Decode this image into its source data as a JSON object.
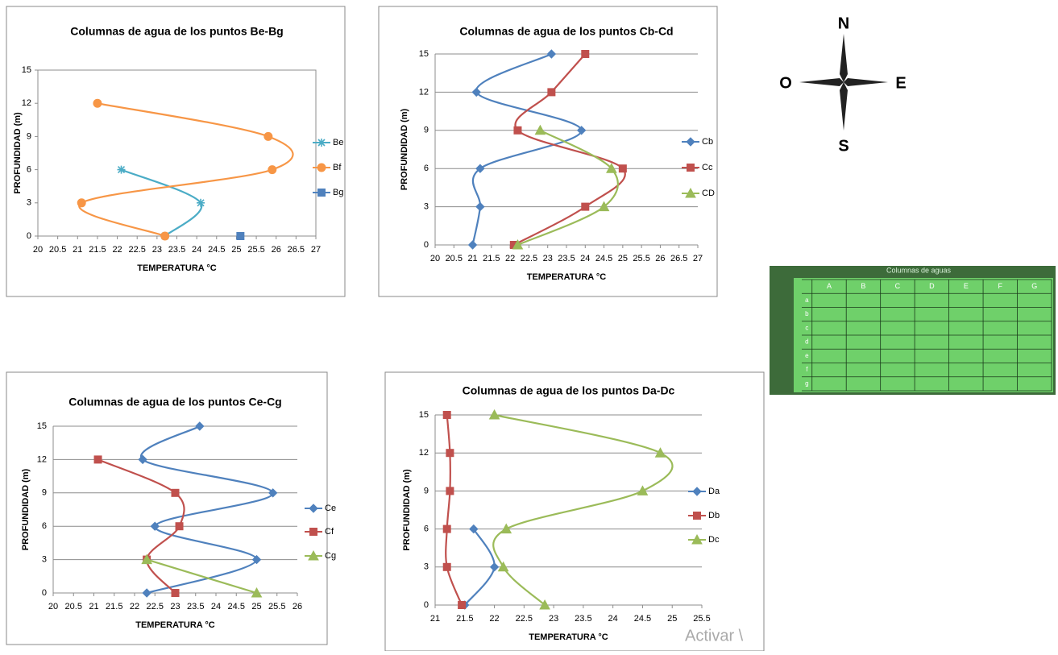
{
  "chart_data": [
    {
      "type": "line",
      "title": "Columnas de agua de los puntos Be-Bg",
      "xlabel": "TEMPERATURA  °C",
      "ylabel": "PROFUNDIDAD (m)",
      "xlim": [
        20,
        27
      ],
      "xticks": [
        20,
        20.5,
        21,
        21.5,
        22,
        22.5,
        23,
        23.5,
        24,
        24.5,
        25,
        25.5,
        26,
        26.5,
        27
      ],
      "ylim": [
        0,
        15
      ],
      "yticks": [
        0,
        3,
        6,
        9,
        12,
        15
      ],
      "grid": false,
      "series": [
        {
          "name": "Be",
          "color": "#4bacc6",
          "marker": "star",
          "x": [
            22.1,
            24.1,
            23.2
          ],
          "values": [
            6,
            3,
            0
          ]
        },
        {
          "name": "Bf",
          "color": "#f79646",
          "marker": "circle",
          "x": [
            21.5,
            25.8,
            25.9,
            21.1,
            23.2
          ],
          "values": [
            12,
            9,
            6,
            3,
            0
          ]
        },
        {
          "name": "Bg",
          "color": "#4f81bd",
          "marker": "square",
          "x": [
            25.1
          ],
          "values": [
            0
          ]
        }
      ]
    },
    {
      "type": "line",
      "title": "Columnas de agua de los puntos Cb-Cd",
      "xlabel": "TEMPERATURA °C",
      "ylabel": "PROFUNDIDAD (m)",
      "xlim": [
        20,
        27
      ],
      "xticks": [
        20,
        20.5,
        21,
        21.5,
        22,
        22.5,
        23,
        23.5,
        24,
        24.5,
        25,
        25.5,
        26,
        26.5,
        27
      ],
      "ylim": [
        0,
        15
      ],
      "yticks": [
        0,
        3,
        6,
        9,
        12,
        15
      ],
      "grid": true,
      "series": [
        {
          "name": "Cb",
          "color": "#4f81bd",
          "marker": "diamond",
          "x": [
            23.1,
            21.1,
            23.9,
            21.2,
            21.2,
            21.0
          ],
          "values": [
            15,
            12,
            9,
            6,
            3,
            0
          ]
        },
        {
          "name": "Cc",
          "color": "#c0504d",
          "marker": "square",
          "x": [
            24.0,
            23.1,
            22.2,
            25.0,
            24.0,
            22.1
          ],
          "values": [
            15,
            12,
            9,
            6,
            3,
            0
          ]
        },
        {
          "name": "CD",
          "color": "#9bbb59",
          "marker": "triangle",
          "x": [
            22.8,
            24.7,
            24.5,
            22.2
          ],
          "values": [
            9,
            6,
            3,
            0
          ]
        }
      ]
    },
    {
      "type": "line",
      "title": "Columnas de agua de los puntos Ce-Cg",
      "xlabel": "TEMPERATURA °C",
      "ylabel": "PROFUNDIDAD (m)",
      "xlim": [
        20,
        26
      ],
      "xticks": [
        20,
        20.5,
        21,
        21.5,
        22,
        22.5,
        23,
        23.5,
        24,
        24.5,
        25,
        25.5,
        26
      ],
      "ylim": [
        0,
        15
      ],
      "yticks": [
        0,
        3,
        6,
        9,
        12,
        15
      ],
      "grid": true,
      "series": [
        {
          "name": "Ce",
          "color": "#4f81bd",
          "marker": "diamond",
          "x": [
            23.6,
            22.2,
            25.4,
            22.5,
            25.0,
            22.3
          ],
          "values": [
            15,
            12,
            9,
            6,
            3,
            0
          ]
        },
        {
          "name": "Cf",
          "color": "#c0504d",
          "marker": "square",
          "x": [
            21.1,
            23.0,
            23.1,
            22.3,
            23.0
          ],
          "values": [
            12,
            9,
            6,
            3,
            0
          ]
        },
        {
          "name": "Cg",
          "color": "#9bbb59",
          "marker": "triangle",
          "x": [
            22.3,
            25.0
          ],
          "values": [
            3,
            0
          ]
        }
      ]
    },
    {
      "type": "line",
      "title": "Columnas de agua de los puntos Da-Dc",
      "xlabel": "TEMPERATURA °C",
      "ylabel": "PROFUNDIDAD (m)",
      "xlim": [
        21,
        25.5
      ],
      "xticks": [
        21,
        21.5,
        22,
        22.5,
        23,
        23.5,
        24,
        24.5,
        25,
        25.5
      ],
      "ylim": [
        0,
        15
      ],
      "yticks": [
        0,
        3,
        6,
        9,
        12,
        15
      ],
      "grid": true,
      "series": [
        {
          "name": "Da",
          "color": "#4f81bd",
          "marker": "diamond",
          "x": [
            21.65,
            22.0,
            21.5
          ],
          "values": [
            6,
            3,
            0
          ]
        },
        {
          "name": "Db",
          "color": "#c0504d",
          "marker": "square",
          "x": [
            21.2,
            21.25,
            21.25,
            21.2,
            21.2,
            21.45
          ],
          "values": [
            15,
            12,
            9,
            6,
            3,
            0
          ]
        },
        {
          "name": "Dc",
          "color": "#9bbb59",
          "marker": "triangle",
          "x": [
            22.0,
            24.8,
            24.5,
            22.2,
            22.15,
            22.85
          ],
          "values": [
            15,
            12,
            9,
            6,
            3,
            0
          ]
        }
      ]
    }
  ],
  "compass": {
    "north": "N",
    "south": "S",
    "east": "E",
    "west": "O"
  },
  "map": {
    "title": "Columnas de aguas",
    "columns": [
      "A",
      "B",
      "C",
      "D",
      "E",
      "F",
      "G"
    ],
    "rows": [
      "a",
      "b",
      "c",
      "d",
      "e",
      "f",
      "g"
    ]
  },
  "watermark": "Activar \\"
}
